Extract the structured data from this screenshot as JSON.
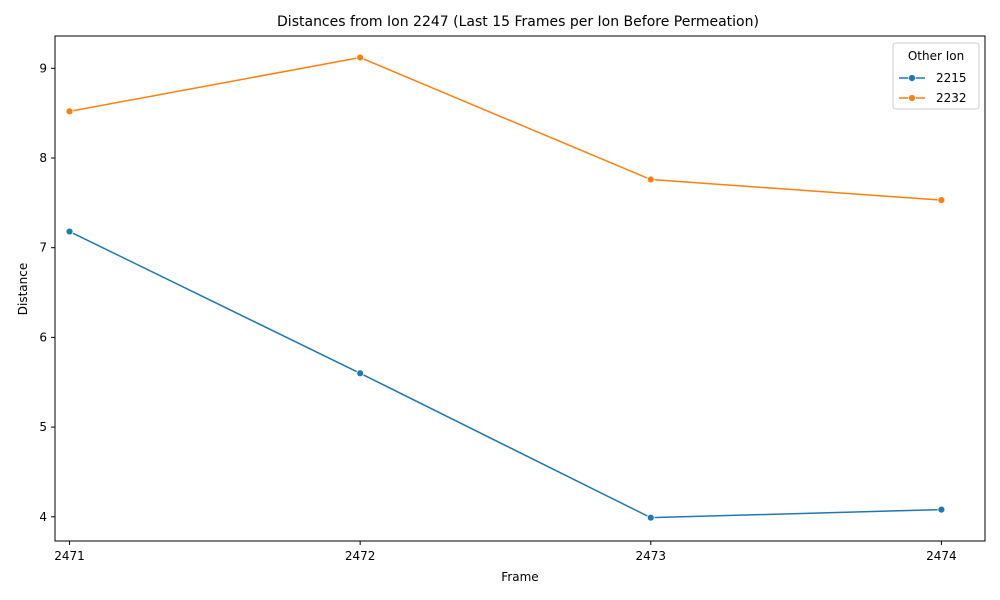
{
  "chart_data": {
    "type": "line",
    "title": "Distances from Ion 2247 (Last 15 Frames per Ion Before Permeation)",
    "xlabel": "Frame",
    "ylabel": "Distance",
    "x": [
      2471,
      2472,
      2473,
      2474
    ],
    "x_tick_labels": [
      "2471",
      "2472",
      "2473",
      "2474"
    ],
    "y_ticks": [
      4,
      5,
      6,
      7,
      8,
      9
    ],
    "y_tick_labels": [
      "4",
      "5",
      "6",
      "7",
      "8",
      "9"
    ],
    "xlim": [
      2470.95,
      2474.15
    ],
    "ylim": [
      3.73,
      9.36
    ],
    "grid": false,
    "legend": {
      "title": "Other Ion",
      "position": "top-right"
    },
    "series": [
      {
        "name": "2215",
        "color": "#1f77b4",
        "values": [
          7.18,
          5.6,
          3.99,
          4.08
        ]
      },
      {
        "name": "2232",
        "color": "#ff7f0e",
        "values": [
          8.52,
          9.12,
          7.76,
          7.53
        ]
      }
    ]
  }
}
